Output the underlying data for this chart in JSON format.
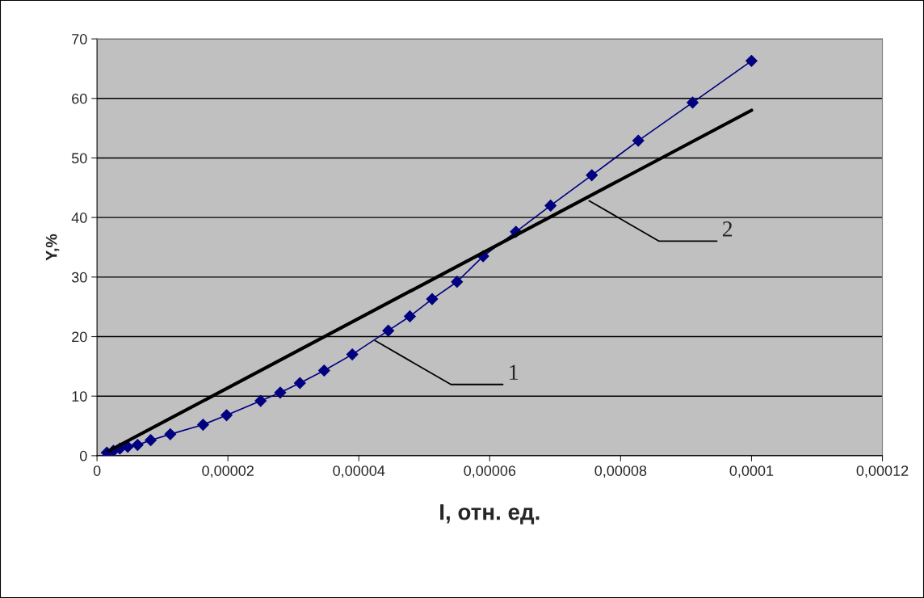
{
  "chart_data": {
    "type": "line",
    "xlabel": "I, отн. ед.",
    "ylabel": "Y,%",
    "xlim": [
      0,
      0.00012
    ],
    "ylim": [
      0,
      70
    ],
    "xticks": [
      0,
      {
        "value": 2e-05,
        "label": "0,00002"
      },
      {
        "value": 4e-05,
        "label": "0,00004"
      },
      {
        "value": 6e-05,
        "label": "0,00006"
      },
      {
        "value": 8e-05,
        "label": "0,00008"
      },
      {
        "value": 0.0001,
        "label": "0,0001"
      },
      {
        "value": 0.00012,
        "label": "0,00012"
      }
    ],
    "yticks": [
      0,
      10,
      20,
      30,
      40,
      50,
      60,
      70
    ],
    "grid": "y",
    "legend": false,
    "series": [
      {
        "color": "#000080",
        "marker": "diamond",
        "x": [
          1.5e-06,
          2.5e-06,
          3.5e-06,
          4.7e-06,
          6.2e-06,
          8.2e-06,
          1.12e-05,
          1.62e-05,
          1.98e-05,
          2.5e-05,
          2.8e-05,
          3.1e-05,
          3.47e-05,
          3.9e-05,
          4.45e-05,
          4.78e-05,
          5.12e-05,
          5.5e-05,
          5.9e-05,
          6.4e-05,
          6.93e-05,
          7.56e-05,
          8.27e-05,
          9.1e-05,
          0.0001
        ],
        "values": [
          0.5,
          0.8,
          1.2,
          1.5,
          1.8,
          2.6,
          3.6,
          5.2,
          6.8,
          9.2,
          10.6,
          12.2,
          14.3,
          17.0,
          21.0,
          23.4,
          26.3,
          29.2,
          33.5,
          37.6,
          42.0,
          47.1,
          52.9,
          59.3,
          66.3
        ]
      },
      {
        "color": "#000000",
        "marker": "none",
        "x": [
          1.8e-06,
          0.0001
        ],
        "values": [
          0.8,
          58.0
        ]
      }
    ],
    "annotations": [
      {
        "text": "1",
        "x": 4.22e-05,
        "y": 19.5
      },
      {
        "text": "2",
        "x": 7.49e-05,
        "y": 43.0
      }
    ]
  }
}
